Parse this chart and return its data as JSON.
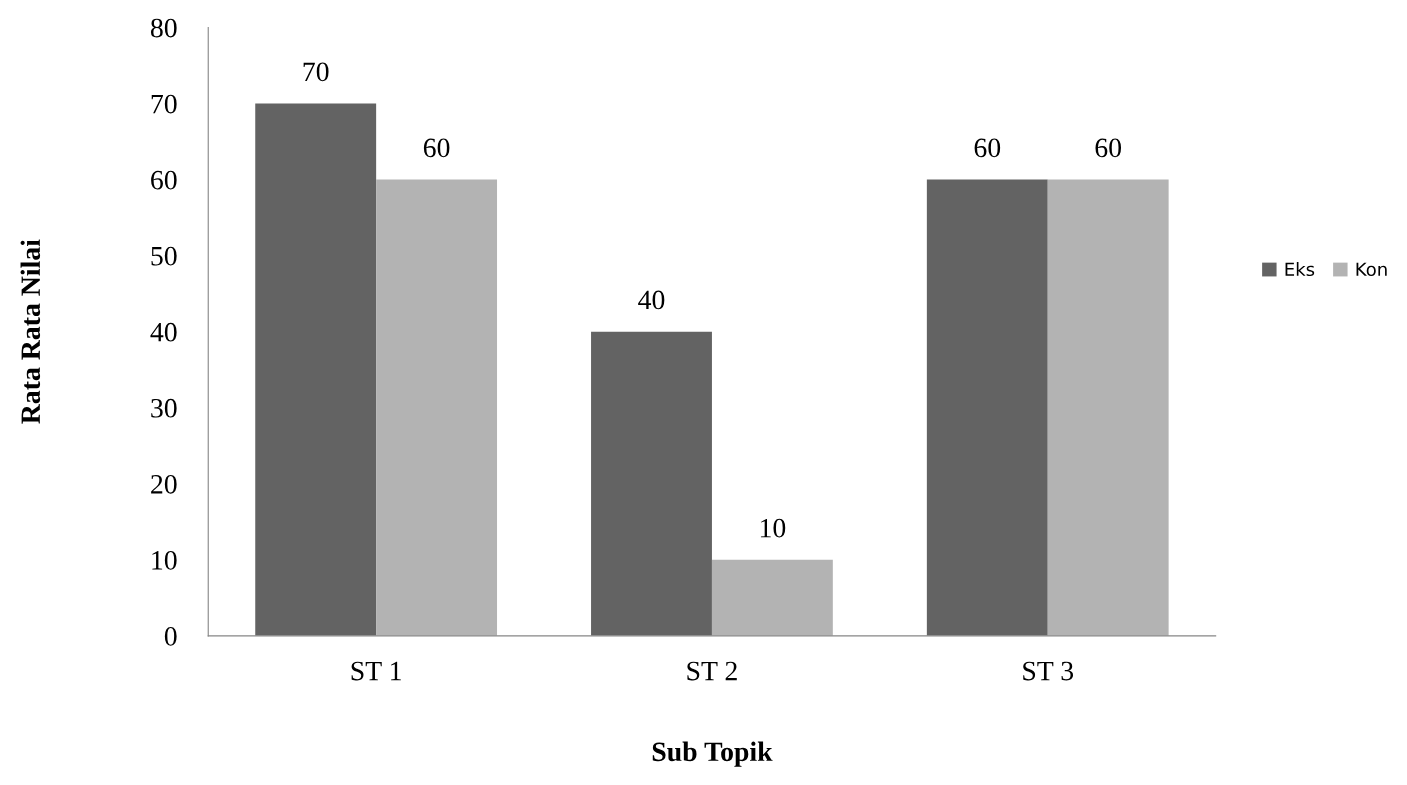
{
  "chart_data": {
    "type": "bar",
    "xlabel": "Sub Topik",
    "ylabel": "Rata Rata Nilai",
    "categories": [
      "ST 1",
      "ST 2",
      "ST 3"
    ],
    "series": [
      {
        "name": "Eks",
        "color": "#636363",
        "values": [
          70,
          40,
          60
        ]
      },
      {
        "name": "Kon",
        "color": "#b3b3b3",
        "values": [
          60,
          10,
          60
        ]
      }
    ],
    "ylim": [
      0,
      80
    ],
    "yticks": [
      0,
      10,
      20,
      30,
      40,
      50,
      60,
      70,
      80
    ],
    "data_labels": true,
    "legend": "right",
    "grid": false
  }
}
